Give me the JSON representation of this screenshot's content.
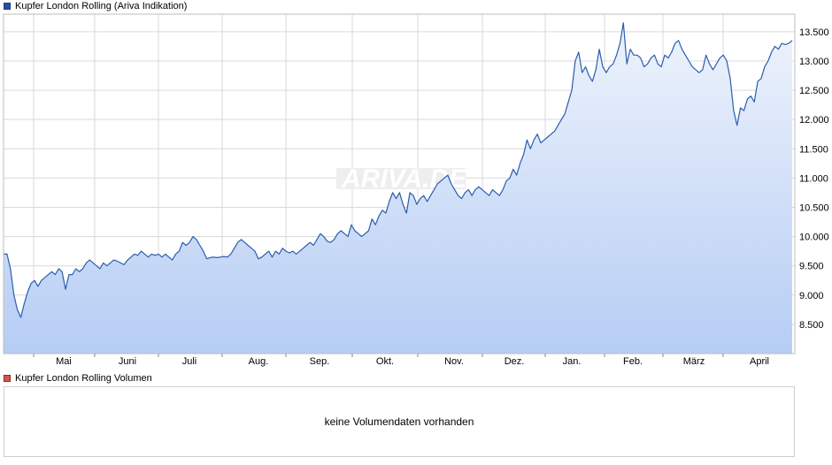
{
  "colors": {
    "line": "#2a5db0",
    "area_top": "#eef3fc",
    "area_bottom": "#b6cdf4",
    "grid": "#d9d9d9",
    "frame": "#bdbdbd",
    "price_swatch": "#1f4fa3",
    "volume_swatch": "#d9534f",
    "watermark_box": "#eeeeee"
  },
  "legend": {
    "price": "Kupfer London Rolling (Ariva Indikation)",
    "volume": "Kupfer London Rolling Volumen"
  },
  "watermark": "ARIVA.DE",
  "volume_panel": {
    "message": "keine Volumendaten vorhanden"
  },
  "chart_data": {
    "type": "area",
    "series": [
      {
        "values": [
          9700,
          9700,
          9450,
          9000,
          8750,
          8620,
          8850,
          9050,
          9200,
          9250,
          9150,
          9250,
          9300,
          9350,
          9400,
          9350,
          9450,
          9400,
          9100,
          9350,
          9350,
          9450,
          9400,
          9450,
          9550,
          9600,
          9550,
          9500,
          9450,
          9550,
          9500,
          9550,
          9600,
          9580,
          9550,
          9520,
          9600,
          9650,
          9700,
          9680,
          9750,
          9700,
          9650,
          9700,
          9680,
          9700,
          9650,
          9700,
          9650,
          9600,
          9700,
          9750,
          9900,
          9850,
          9900,
          10000,
          9950,
          9850,
          9750,
          9620,
          9640,
          9650,
          9640,
          9650,
          9660,
          9650,
          9700,
          9800,
          9900,
          9950,
          9900,
          9850,
          9800,
          9750,
          9620,
          9650,
          9700,
          9750,
          9650,
          9750,
          9700,
          9800,
          9750,
          9720,
          9750,
          9700,
          9750,
          9800,
          9850,
          9900,
          9850,
          9950,
          10050,
          10000,
          9920,
          9900,
          9950,
          10050,
          10100,
          10050,
          10000,
          10200,
          10100,
          10050,
          10000,
          10050,
          10100,
          10300,
          10200,
          10350,
          10450,
          10400,
          10600,
          10750,
          10650,
          10750,
          10550,
          10400,
          10750,
          10700,
          10550,
          10650,
          10700,
          10600,
          10700,
          10800,
          10900,
          10950,
          11000,
          11050,
          10900,
          10800,
          10700,
          10650,
          10750,
          10800,
          10700,
          10800,
          10850,
          10800,
          10750,
          10700,
          10800,
          10750,
          10700,
          10800,
          10950,
          11000,
          11150,
          11050,
          11250,
          11400,
          11650,
          11500,
          11650,
          11750,
          11600,
          11650,
          11700,
          11750,
          11800,
          11900,
          12000,
          12100,
          12300,
          12500,
          13000,
          13150,
          12800,
          12900,
          12750,
          12650,
          12850,
          13200,
          12900,
          12800,
          12900,
          12950,
          13100,
          13300,
          13650,
          12950,
          13200,
          13100,
          13100,
          13050,
          12900,
          12950,
          13050,
          13100,
          12950,
          12900,
          13100,
          13050,
          13150,
          13300,
          13350,
          13200,
          13100,
          13000,
          12900,
          12850,
          12800,
          12850,
          13100,
          12950,
          12850,
          12950,
          13050,
          13100,
          13000,
          12700,
          12150,
          11900,
          12200,
          12150,
          12350,
          12400,
          12300,
          12650,
          12700,
          12900,
          13000,
          13150,
          13250,
          13200,
          13300,
          13280,
          13300,
          13350
        ]
      }
    ],
    "x_labels": [
      "Mai",
      "Juni",
      "Juli",
      "Aug.",
      "Sep.",
      "Okt.",
      "Nov.",
      "Dez.",
      "Jan.",
      "Feb.",
      "März",
      "April"
    ],
    "y_ticks": [
      "8.500",
      "9.000",
      "9.500",
      "10.000",
      "10.500",
      "11.000",
      "11.500",
      "12.000",
      "12.500",
      "13.000",
      "13.500"
    ],
    "ylim": [
      8000,
      13800
    ],
    "grid": true
  }
}
